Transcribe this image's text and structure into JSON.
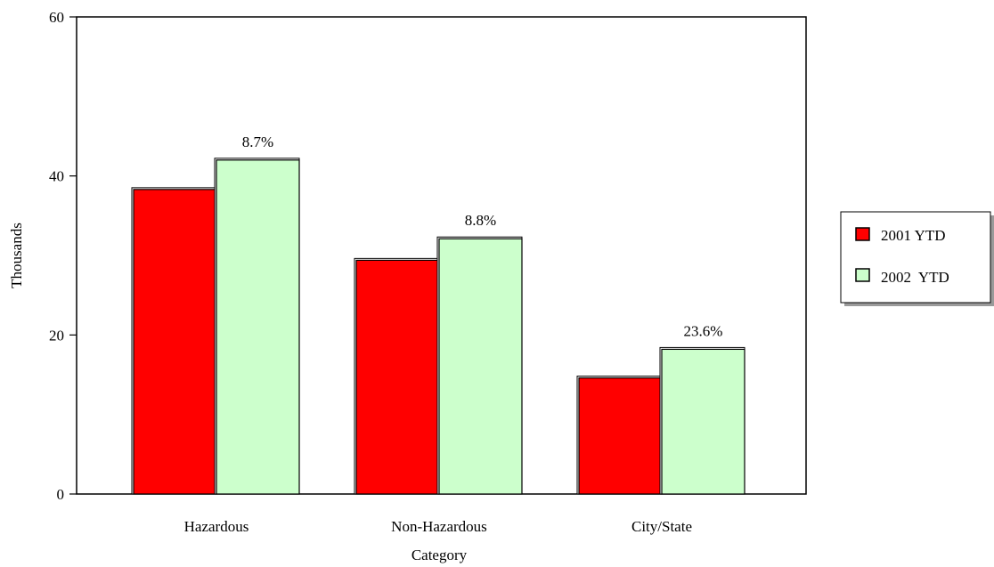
{
  "chart_data": {
    "type": "bar",
    "title": "",
    "xlabel": "Category",
    "ylabel": "Thousands",
    "categories": [
      "Hazardous",
      "Non-Hazardous",
      "City/State"
    ],
    "series": [
      {
        "name": "2001 YTD",
        "values": [
          38.3,
          29.4,
          14.6
        ],
        "color": "#ff0000"
      },
      {
        "name": "2002  YTD",
        "values": [
          42.0,
          32.1,
          18.2
        ],
        "color": "#ccffcc"
      }
    ],
    "data_labels": [
      "8.7%",
      "8.8%",
      "23.6%"
    ],
    "ylim": [
      0,
      60
    ],
    "yticks": [
      0,
      20,
      40,
      60
    ],
    "grid": false,
    "legend_position": "right"
  }
}
